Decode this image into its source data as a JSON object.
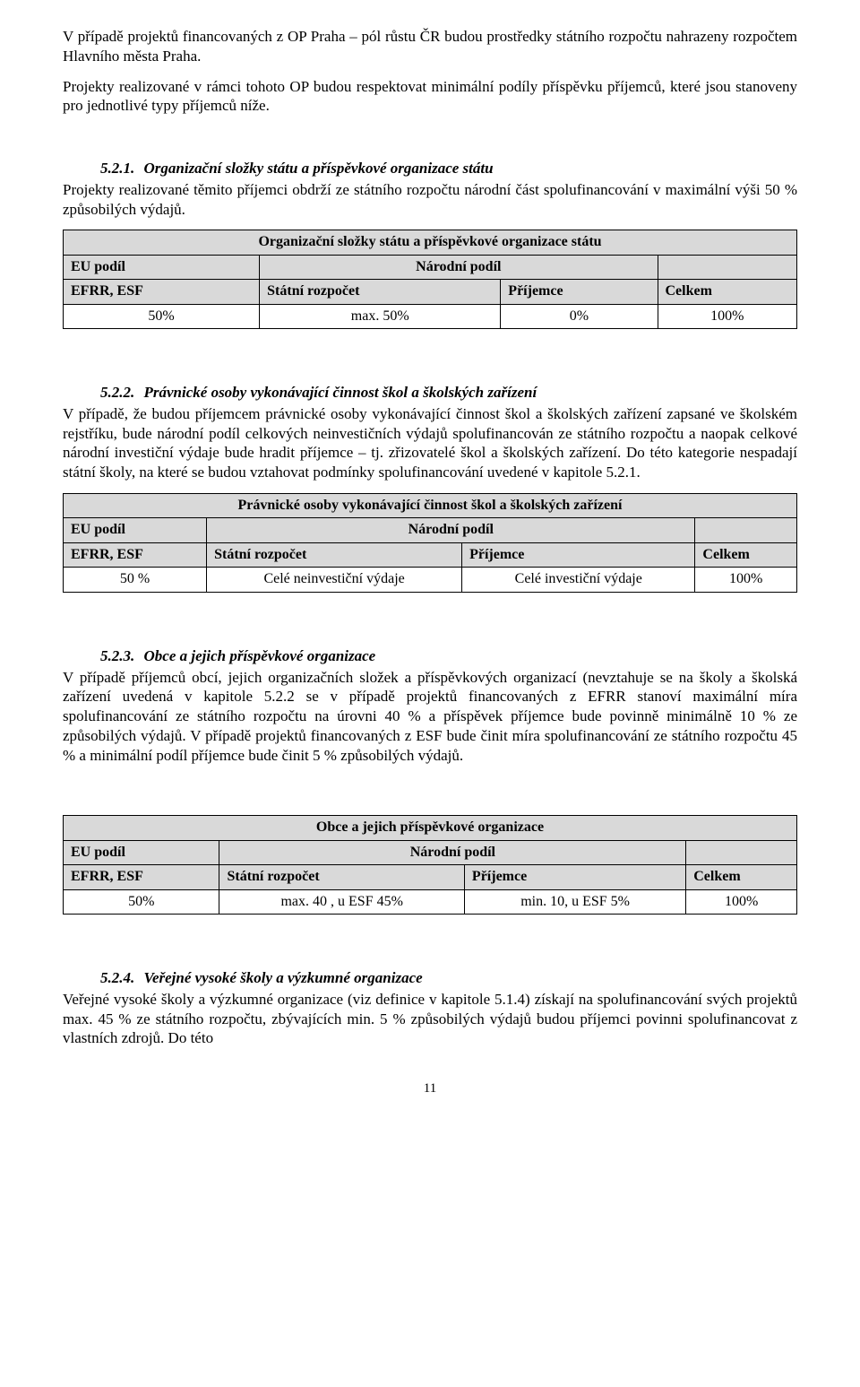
{
  "intro": {
    "p1": "V případě projektů financovaných z OP Praha – pól růstu ČR budou prostředky státního rozpočtu nahrazeny rozpočtem Hlavního města Praha.",
    "p2": "Projekty realizované v rámci tohoto OP budou respektovat minimální podíly příspěvku příjemců, které jsou stanoveny pro jednotlivé typy příjemců níže."
  },
  "s521": {
    "num": "5.2.1.",
    "title": "Organizační složky státu a příspěvkové organizace státu",
    "body": "Projekty realizované těmito příjemci obdrží ze státního rozpočtu národní část spolufinancování v maximální výši 50 % způsobilých výdajů.",
    "table": {
      "title": "Organizační složky státu a příspěvkové organizace státu",
      "head_eu": "EU podíl",
      "head_nar": "Národní podíl",
      "head_efrr": "EFRR, ESF",
      "head_sr": "Státní rozpočet",
      "head_prij": "Příjemce",
      "head_celkem": "Celkem",
      "r_efrr": "50%",
      "r_sr": "max. 50%",
      "r_prij": "0%",
      "r_celkem": "100%"
    }
  },
  "s522": {
    "num": "5.2.2.",
    "title": "Právnické osoby vykonávající činnost škol a školských zařízení",
    "body": "V případě, že budou příjemcem právnické osoby vykonávající činnost škol a školských zařízení zapsané ve školském rejstříku, bude národní podíl celkových neinvestičních výdajů spolufinancován ze státního rozpočtu a naopak celkové národní investiční výdaje bude hradit příjemce – tj. zřizovatelé škol a školských zařízení. Do této kategorie nespadají státní školy, na které se budou vztahovat podmínky spolufinancování uvedené v kapitole 5.2.1.",
    "table": {
      "title": "Právnické osoby vykonávající činnost škol a školských zařízení",
      "head_eu": "EU podíl",
      "head_nar": "Národní podíl",
      "head_efrr": "EFRR, ESF",
      "head_sr": "Státní rozpočet",
      "head_prij": "Příjemce",
      "head_celkem": "Celkem",
      "r_efrr": "50 %",
      "r_sr": "Celé neinvestiční výdaje",
      "r_prij": "Celé investiční výdaje",
      "r_celkem": "100%"
    }
  },
  "s523": {
    "num": "5.2.3.",
    "title": "Obce a jejich příspěvkové organizace",
    "body": "V případě příjemců obcí, jejich organizačních složek a příspěvkových organizací (nevztahuje se na školy a školská zařízení uvedená v kapitole 5.2.2 se v případě projektů financovaných z EFRR stanoví maximální míra spolufinancování ze státního rozpočtu na úrovni 40 % a příspěvek příjemce bude povinně minimálně 10 % ze způsobilých výdajů. V případě projektů financovaných z ESF bude činit míra spolufinancování ze státního rozpočtu 45 % a minimální podíl příjemce bude činit 5 % způsobilých výdajů.",
    "table": {
      "title": "Obce a jejich příspěvkové organizace",
      "head_eu": "EU podíl",
      "head_nar": "Národní podíl",
      "head_efrr": "EFRR, ESF",
      "head_sr": "Státní rozpočet",
      "head_prij": "Příjemce",
      "head_celkem": "Celkem",
      "r_efrr": "50%",
      "r_sr": "max. 40 , u ESF 45%",
      "r_prij": "min. 10, u ESF 5%",
      "r_celkem": "100%"
    }
  },
  "s524": {
    "num": "5.2.4.",
    "title": "Veřejné vysoké školy a výzkumné organizace",
    "body": "Veřejné vysoké školy a výzkumné organizace (viz definice v kapitole 5.1.4) získají na spolufinancování svých projektů max. 45 % ze státního rozpočtu, zbývajících min. 5 % způsobilých výdajů budou příjemci povinni spolufinancovat z vlastních zdrojů. Do této"
  },
  "pagenum": "11"
}
